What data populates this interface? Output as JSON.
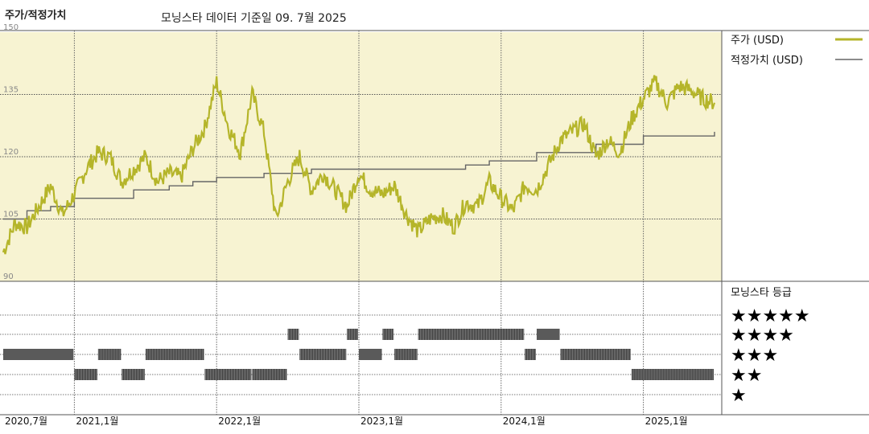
{
  "header": {
    "title": "주가/적정가치",
    "subtitle": "모닝스타 데이터 기준일 09. 7월 2025"
  },
  "legend": {
    "price_label": "주가 (USD)",
    "fair_label": "적정가치 (USD)",
    "rating_title": "모닝스타 등급",
    "price_color": "#b5b52a",
    "fair_color": "#666666"
  },
  "rating_stars": [
    "★★★★★",
    "★★★★",
    "★★★",
    "★★",
    "★"
  ],
  "chart_data": {
    "type": "line",
    "x_axis": {
      "start": "2020-07",
      "end": "2025-07",
      "tick_labels": [
        "2020,7월",
        "2021,1월",
        "2022,1월",
        "2023,1월",
        "2024,1월",
        "2025,1월"
      ],
      "tick_dates": [
        "2020-07",
        "2021-01",
        "2022-01",
        "2023-01",
        "2024-01",
        "2025-01"
      ]
    },
    "y_axis": {
      "ylim": [
        90,
        150
      ],
      "ticks": [
        90,
        105,
        120,
        135,
        150
      ]
    },
    "background_band": {
      "from": 105,
      "to": 150,
      "color": "#f7f3d2"
    },
    "series": [
      {
        "name": "주가 (USD)",
        "color": "#b5b52a",
        "points": [
          [
            "2020-07",
            97
          ],
          [
            "2020-08",
            104
          ],
          [
            "2020-09",
            103
          ],
          [
            "2020-10",
            108
          ],
          [
            "2020-11",
            113
          ],
          [
            "2020-12",
            106
          ],
          [
            "2021-01",
            111
          ],
          [
            "2021-02",
            117
          ],
          [
            "2021-03",
            121
          ],
          [
            "2021-04",
            120
          ],
          [
            "2021-05",
            114
          ],
          [
            "2021-06",
            117
          ],
          [
            "2021-07",
            120
          ],
          [
            "2021-08",
            114
          ],
          [
            "2021-09",
            116
          ],
          [
            "2021-10",
            115
          ],
          [
            "2021-11",
            122
          ],
          [
            "2021-12",
            127
          ],
          [
            "2022-01",
            138
          ],
          [
            "2022-02",
            127
          ],
          [
            "2022-03",
            121
          ],
          [
            "2022-04",
            135
          ],
          [
            "2022-05",
            126
          ],
          [
            "2022-06",
            105
          ],
          [
            "2022-07",
            114
          ],
          [
            "2022-08",
            120
          ],
          [
            "2022-09",
            112
          ],
          [
            "2022-10",
            116
          ],
          [
            "2022-11",
            112
          ],
          [
            "2022-12",
            108
          ],
          [
            "2023-01",
            116
          ],
          [
            "2023-02",
            112
          ],
          [
            "2023-03",
            111
          ],
          [
            "2023-04",
            113
          ],
          [
            "2023-05",
            106
          ],
          [
            "2023-06",
            102
          ],
          [
            "2023-07",
            105
          ],
          [
            "2023-08",
            106
          ],
          [
            "2023-09",
            103
          ],
          [
            "2023-10",
            109
          ],
          [
            "2023-11",
            108
          ],
          [
            "2023-12",
            114
          ],
          [
            "2024-01",
            110
          ],
          [
            "2024-02",
            107
          ],
          [
            "2024-03",
            113
          ],
          [
            "2024-04",
            112
          ],
          [
            "2024-05",
            118
          ],
          [
            "2024-06",
            124
          ],
          [
            "2024-07",
            126
          ],
          [
            "2024-08",
            128
          ],
          [
            "2024-09",
            120
          ],
          [
            "2024-10",
            124
          ],
          [
            "2024-11",
            121
          ],
          [
            "2024-12",
            129
          ],
          [
            "2025-01",
            134
          ],
          [
            "2025-02",
            138
          ],
          [
            "2025-03",
            133
          ],
          [
            "2025-04",
            137
          ],
          [
            "2025-05",
            136
          ],
          [
            "2025-06",
            134
          ],
          [
            "2025-07",
            133
          ]
        ]
      },
      {
        "name": "적정가치 (USD)",
        "color": "#666666",
        "step": true,
        "points": [
          [
            "2020-07",
            105
          ],
          [
            "2020-09",
            107
          ],
          [
            "2020-11",
            108
          ],
          [
            "2021-01",
            110
          ],
          [
            "2021-06",
            112
          ],
          [
            "2021-09",
            113
          ],
          [
            "2021-11",
            114
          ],
          [
            "2022-01",
            115
          ],
          [
            "2022-05",
            116
          ],
          [
            "2022-09",
            117
          ],
          [
            "2023-06",
            117
          ],
          [
            "2023-10",
            118
          ],
          [
            "2023-12",
            119
          ],
          [
            "2024-04",
            121
          ],
          [
            "2024-09",
            123
          ],
          [
            "2025-01",
            125
          ],
          [
            "2025-07",
            126
          ]
        ]
      }
    ],
    "star_rating_periods": [
      {
        "from": "2020-07",
        "to": "2021-01",
        "stars": 3
      },
      {
        "from": "2021-01",
        "to": "2021-03",
        "stars": 2
      },
      {
        "from": "2021-03",
        "to": "2021-05",
        "stars": 3
      },
      {
        "from": "2021-05",
        "to": "2021-07",
        "stars": 2
      },
      {
        "from": "2021-07",
        "to": "2021-12",
        "stars": 3
      },
      {
        "from": "2021-12",
        "to": "2022-04",
        "stars": 2
      },
      {
        "from": "2022-04",
        "to": "2022-07",
        "stars": 2
      },
      {
        "from": "2022-07",
        "to": "2022-08",
        "stars": 4
      },
      {
        "from": "2022-08",
        "to": "2022-12",
        "stars": 3
      },
      {
        "from": "2022-12",
        "to": "2023-01",
        "stars": 4
      },
      {
        "from": "2023-01",
        "to": "2023-03",
        "stars": 3
      },
      {
        "from": "2023-03",
        "to": "2023-04",
        "stars": 4
      },
      {
        "from": "2023-04",
        "to": "2023-06",
        "stars": 3
      },
      {
        "from": "2023-06",
        "to": "2024-03",
        "stars": 4
      },
      {
        "from": "2024-03",
        "to": "2024-04",
        "stars": 3
      },
      {
        "from": "2024-04",
        "to": "2024-06",
        "stars": 4
      },
      {
        "from": "2024-06",
        "to": "2024-12",
        "stars": 3
      },
      {
        "from": "2024-12",
        "to": "2025-07",
        "stars": 2
      }
    ]
  }
}
